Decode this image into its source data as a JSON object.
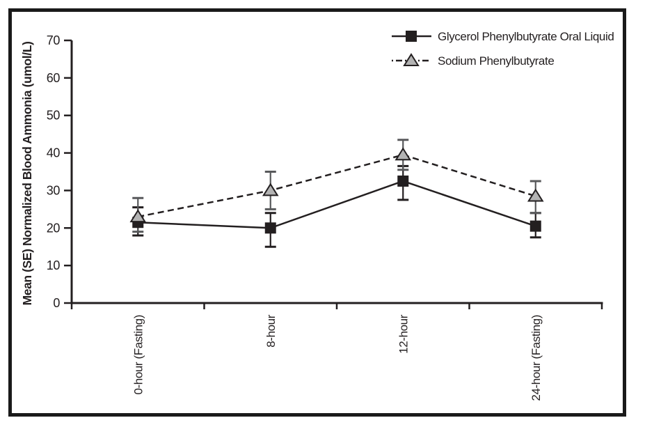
{
  "figure": {
    "background": "#ffffff",
    "frame_color": "#1a1a1a"
  },
  "chart_data": {
    "type": "line",
    "title": "",
    "xlabel": "",
    "ylabel": "Mean (SE) Normalized Blood Ammonia (umol/L)",
    "categories": [
      "0-hour (Fasting)",
      "8-hour",
      "12-hour",
      "24-hour (Fasting)"
    ],
    "ylim": [
      0,
      70
    ],
    "yticks": [
      0,
      10,
      20,
      30,
      40,
      50,
      60,
      70
    ],
    "grid": false,
    "legend_position": "top-right",
    "error_bar_type": "SE",
    "series": [
      {
        "name": "Glycerol Phenylbutyrate Oral Liquid",
        "marker": "square",
        "marker_color": "#231f20",
        "line_style": "solid",
        "line_color": "#231f20",
        "error_color": "#231f20",
        "values": [
          21.5,
          20,
          32.5,
          20.5
        ],
        "error_upper": [
          25.5,
          24,
          36.5,
          24
        ],
        "error_lower": [
          18,
          15,
          27.5,
          17.5
        ]
      },
      {
        "name": "Sodium Phenylbutyrate",
        "marker": "triangle",
        "marker_fill": "#b3b3b3",
        "marker_edge": "#231f20",
        "line_style": "dashed",
        "line_color": "#231f20",
        "error_color": "#58595b",
        "values": [
          23,
          30,
          39.5,
          28.5
        ],
        "error_upper": [
          28,
          35,
          43.5,
          32.5
        ],
        "error_lower": [
          19,
          25,
          35.5,
          24
        ]
      }
    ]
  }
}
